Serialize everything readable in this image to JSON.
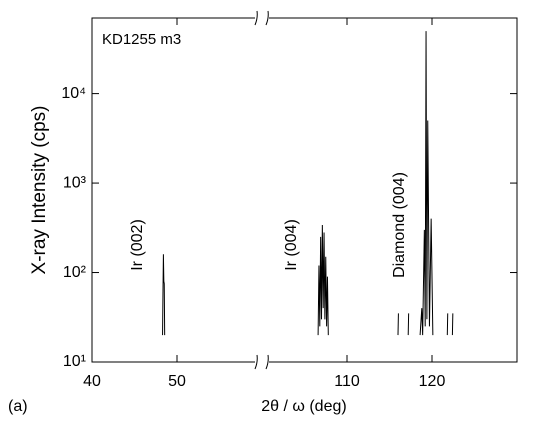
{
  "chart_data": {
    "type": "line",
    "annotation": "KD1255 m3",
    "panel_label": "(a)",
    "x_label": "2θ / ω (deg)",
    "y_label": "X-ray Intensity (cps)",
    "peak_labels": [
      "Ir (002)",
      "Ir (004)",
      "Diamond (004)"
    ],
    "log_y": true,
    "xlim": [
      [
        40,
        60
      ],
      [
        100,
        130
      ]
    ],
    "xticks": [
      40,
      50,
      110,
      120
    ],
    "ylim": [
      10,
      70000
    ],
    "yticks": [
      {
        "value": 10,
        "label": "10¹"
      },
      {
        "value": 100,
        "label": "10²"
      },
      {
        "value": 1000,
        "label": "10³"
      },
      {
        "value": 10000,
        "label": "10⁴"
      }
    ],
    "series": [
      {
        "name": "KD1255 m3",
        "color": "#000000",
        "x": [
          48.3,
          48.35,
          48.4,
          48.45,
          48.5,
          48.55,
          null,
          106.6,
          106.7,
          106.8,
          106.9,
          107.0,
          107.1,
          107.2,
          107.3,
          107.4,
          107.5,
          107.6,
          107.7,
          107.8,
          null,
          116.0,
          116.05,
          null,
          117.2,
          117.25,
          null,
          118.6,
          118.8,
          118.9,
          119.1,
          119.2,
          119.3,
          119.4,
          119.5,
          119.7,
          119.9,
          120.1,
          null,
          121.8,
          121.85,
          null,
          122.4,
          122.45
        ],
        "values": [
          20,
          60,
          160,
          80,
          75,
          20,
          null,
          20,
          120,
          25,
          250,
          30,
          340,
          40,
          280,
          30,
          150,
          25,
          90,
          20,
          null,
          20,
          35,
          null,
          20,
          35,
          null,
          20,
          40,
          20,
          300,
          25,
          50000,
          30,
          5000,
          25,
          400,
          20,
          null,
          20,
          35,
          null,
          20,
          35
        ]
      }
    ]
  }
}
